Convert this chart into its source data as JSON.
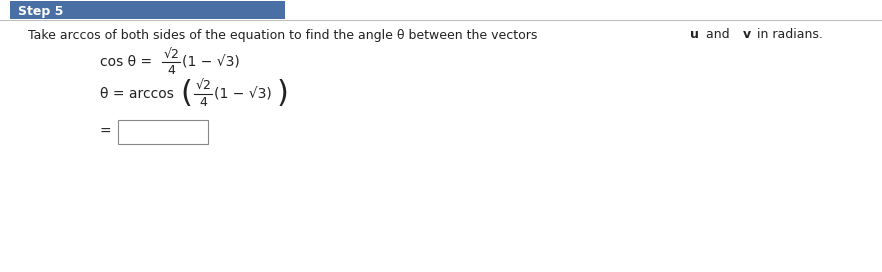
{
  "title": "Step 5",
  "title_bg": "#4a6fa5",
  "title_text_color": "#ffffff",
  "body_bg": "#ffffff",
  "border_color": "#c0c0c0",
  "desc_text": "Take arccos of both sides of the equation to find the angle θ between the vectors ",
  "desc_bold1": "u",
  "desc_mid": " and ",
  "desc_bold2": "v",
  "desc_end": " in radians.",
  "line1_left": "cos θ = ",
  "line2_left": "θ = arccos",
  "line3_left": "=",
  "box_color": "#ffffff",
  "box_border": "#888888"
}
